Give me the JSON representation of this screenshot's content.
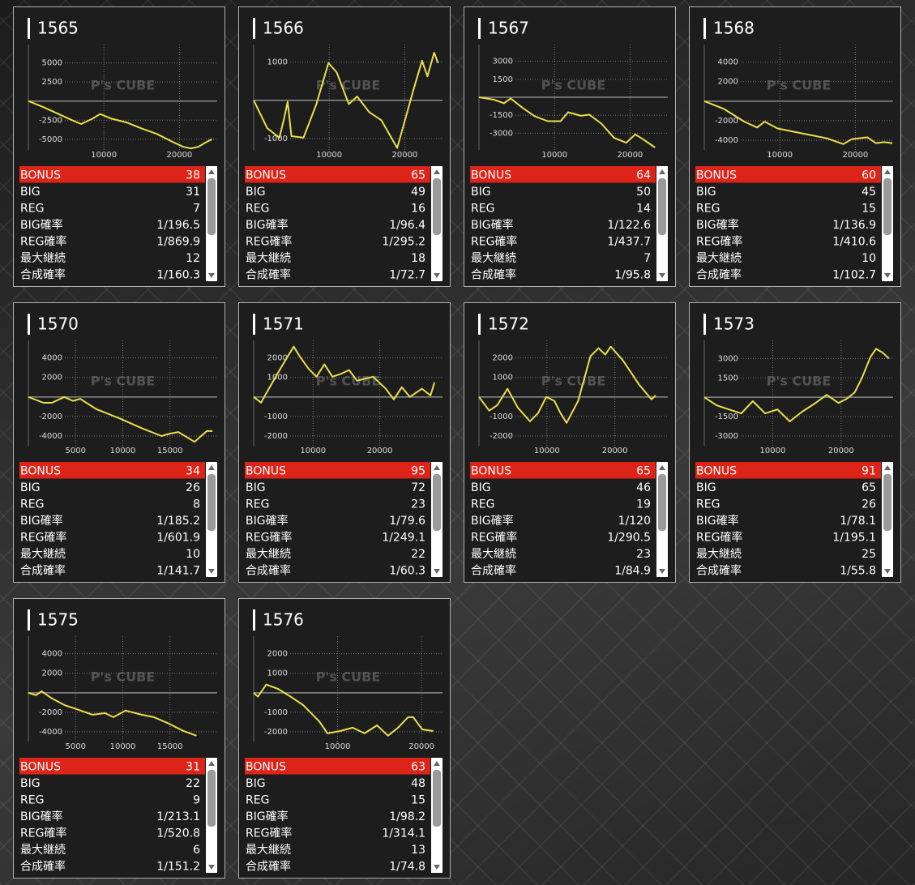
{
  "watermark": "P's CUBE",
  "row_labels": [
    "BONUS",
    "BIG",
    "REG",
    "BIG確率",
    "REG確率",
    "最大継続",
    "合成確率"
  ],
  "panels": [
    {
      "title": "1565",
      "chart": {
        "type": "line",
        "grid": true,
        "xlim": [
          0,
          25000
        ],
        "ylim": [
          -6400,
          7400
        ],
        "xticks": [
          10000,
          20000
        ],
        "yticks": [
          -5000,
          -2500,
          2500,
          5000
        ],
        "x": [
          0,
          2000,
          4000,
          6000,
          7000,
          8500,
          9500,
          11000,
          13000,
          15000,
          17000,
          19000,
          20500,
          21500,
          22500,
          23500,
          24300
        ],
        "series": [
          {
            "color": "#e9df4c",
            "values": [
              0,
              -800,
              -1700,
              -2600,
              -3000,
              -2300,
              -1700,
              -2300,
              -2800,
              -3600,
              -4300,
              -5300,
              -6000,
              -6200,
              -6000,
              -5400,
              -5000
            ]
          }
        ]
      },
      "stats": [
        38,
        31,
        7,
        "1/196.5",
        "1/869.9",
        12,
        "1/160.3"
      ]
    },
    {
      "title": "1566",
      "chart": {
        "type": "line",
        "grid": true,
        "xlim": [
          0,
          25000
        ],
        "ylim": [
          -1300,
          1460
        ],
        "xticks": [
          10000,
          20000
        ],
        "yticks": [
          -1000,
          1000
        ],
        "x": [
          0,
          1800,
          3400,
          4000,
          4500,
          5000,
          6600,
          8300,
          9900,
          11000,
          12600,
          13700,
          15300,
          16900,
          19000,
          21200,
          22300,
          23000,
          23900,
          24400
        ],
        "series": [
          {
            "color": "#e9df4c",
            "values": [
              0,
              -730,
              -980,
              -500,
              -40,
              -940,
              -980,
              -100,
              980,
              730,
              -100,
              100,
              -310,
              -520,
              -1250,
              310,
              1040,
              625,
              1250,
              980
            ]
          }
        ]
      },
      "stats": [
        65,
        49,
        16,
        "1/96.4",
        "1/295.2",
        18,
        "1/72.7"
      ]
    },
    {
      "title": "1567",
      "chart": {
        "type": "line",
        "grid": true,
        "xlim": [
          0,
          25000
        ],
        "ylim": [
          -4400,
          4400
        ],
        "xticks": [
          10000,
          20000
        ],
        "yticks": [
          -3000,
          -1500,
          1500,
          3000
        ],
        "x": [
          0,
          2000,
          3300,
          4200,
          5800,
          7400,
          9100,
          10800,
          11800,
          13500,
          14600,
          16200,
          17900,
          19500,
          20700,
          21700,
          23300
        ],
        "series": [
          {
            "color": "#e9df4c",
            "values": [
              0,
              -200,
              -500,
              -100,
              -900,
              -1600,
              -2000,
              -2000,
              -1250,
              -1550,
              -1450,
              -2200,
              -3400,
              -3800,
              -3100,
              -3500,
              -4200
            ]
          }
        ]
      },
      "stats": [
        64,
        50,
        14,
        "1/122.6",
        "1/437.7",
        7,
        "1/95.8"
      ]
    },
    {
      "title": "1568",
      "chart": {
        "type": "line",
        "grid": true,
        "xlim": [
          0,
          25000
        ],
        "ylim": [
          -5000,
          5800
        ],
        "xticks": [
          10000,
          20000
        ],
        "yticks": [
          -4000,
          -2000,
          2000,
          4000
        ],
        "x": [
          0,
          2600,
          5300,
          7000,
          8000,
          9700,
          12900,
          16200,
          18400,
          19500,
          21600,
          22700,
          23800,
          24900
        ],
        "series": [
          {
            "color": "#e9df4c",
            "values": [
              0,
              -800,
              -2100,
              -2700,
              -2100,
              -2800,
              -3300,
              -3800,
              -4400,
              -3900,
              -3700,
              -4300,
              -4200,
              -4300
            ]
          }
        ]
      },
      "stats": [
        60,
        45,
        15,
        "1/136.9",
        "1/410.6",
        10,
        "1/102.7"
      ]
    },
    {
      "title": "1570",
      "chart": {
        "type": "line",
        "grid": true,
        "xlim": [
          0,
          20000
        ],
        "ylim": [
          -5000,
          5800
        ],
        "xticks": [
          5000,
          10000,
          15000
        ],
        "yticks": [
          -4000,
          -2000,
          2000,
          4000
        ],
        "x": [
          0,
          1600,
          2500,
          3800,
          4700,
          5500,
          7200,
          9800,
          12000,
          14100,
          15000,
          15900,
          17600,
          18900,
          19500
        ],
        "series": [
          {
            "color": "#e9df4c",
            "values": [
              0,
              -600,
              -600,
              0,
              -400,
              -200,
              -1250,
              -2250,
              -3200,
              -4000,
              -3750,
              -3600,
              -4600,
              -3500,
              -3500
            ]
          }
        ]
      },
      "stats": [
        34,
        26,
        8,
        "1/185.2",
        "1/601.9",
        10,
        "1/141.7"
      ]
    },
    {
      "title": "1571",
      "chart": {
        "type": "line",
        "grid": true,
        "xlim": [
          1100,
          29400
        ],
        "ylim": [
          -2500,
          2900
        ],
        "xticks": [
          10000,
          20000
        ],
        "yticks": [
          -2000,
          -1000,
          1000,
          2000
        ],
        "x": [
          1100,
          2200,
          4400,
          6200,
          7100,
          8000,
          9300,
          10500,
          11700,
          12900,
          14100,
          15400,
          16600,
          19000,
          20900,
          22100,
          23300,
          24500,
          26300,
          27600,
          28200
        ],
        "series": [
          {
            "color": "#e9df4c",
            "values": [
              0,
              -290,
              1040,
              2080,
              2580,
              2080,
              1460,
              1040,
              1670,
              1040,
              1170,
              1380,
              830,
              1040,
              420,
              -125,
              500,
              0,
              420,
              80,
              750
            ]
          }
        ]
      },
      "stats": [
        95,
        72,
        23,
        "1/79.6",
        "1/249.1",
        22,
        "1/60.3"
      ]
    },
    {
      "title": "1572",
      "chart": {
        "type": "line",
        "grid": true,
        "xlim": [
          0,
          27800
        ],
        "ylim": [
          -2500,
          2900
        ],
        "xticks": [
          10000,
          20000
        ],
        "yticks": [
          -2000,
          -1000,
          1000,
          2000
        ],
        "x": [
          0,
          1500,
          2700,
          4200,
          5700,
          7500,
          8700,
          9900,
          11100,
          12000,
          12900,
          14600,
          16400,
          17600,
          18600,
          19400,
          21200,
          23600,
          25400,
          26000
        ],
        "series": [
          {
            "color": "#e9df4c",
            "values": [
              0,
              -700,
              -420,
              420,
              -540,
              -1250,
              -830,
              0,
              -200,
              -830,
              -1330,
              -200,
              2080,
              2500,
              2170,
              2580,
              1870,
              620,
              -125,
              80
            ]
          }
        ]
      },
      "stats": [
        65,
        46,
        19,
        "1/120",
        "1/290.5",
        23,
        "1/84.9"
      ]
    },
    {
      "title": "1573",
      "chart": {
        "type": "line",
        "grid": true,
        "xlim": [
          0,
          27600
        ],
        "ylim": [
          -3750,
          4400
        ],
        "xticks": [
          10000,
          20000
        ],
        "yticks": [
          -3000,
          -1500,
          1500,
          3000
        ],
        "x": [
          0,
          1800,
          3600,
          5400,
          7100,
          8900,
          10700,
          12500,
          14300,
          16100,
          17900,
          19600,
          20800,
          22000,
          23100,
          24300,
          25100,
          26100,
          27000
        ],
        "series": [
          {
            "color": "#e9df4c",
            "values": [
              0,
              -620,
              -940,
              -1250,
              -300,
              -1250,
              -940,
              -1870,
              -1120,
              -500,
              190,
              -440,
              -120,
              380,
              1560,
              3120,
              3750,
              3440,
              3000
            ]
          }
        ]
      },
      "stats": [
        91,
        65,
        26,
        "1/78.1",
        "1/195.1",
        25,
        "1/55.8"
      ]
    },
    {
      "title": "1575",
      "chart": {
        "type": "line",
        "grid": true,
        "xlim": [
          0,
          20000
        ],
        "ylim": [
          -5000,
          5800
        ],
        "xticks": [
          5000,
          10000,
          15000
        ],
        "yticks": [
          -4000,
          -2000,
          2000,
          4000
        ],
        "x": [
          0,
          800,
          1400,
          2500,
          3800,
          5100,
          6800,
          8100,
          9000,
          10300,
          12000,
          13300,
          14700,
          16400,
          17800
        ],
        "series": [
          {
            "color": "#e9df4c",
            "values": [
              0,
              -250,
              160,
              -580,
              -1250,
              -1670,
              -2250,
              -2080,
              -2500,
              -1830,
              -2250,
              -2500,
              -3080,
              -3900,
              -4400
            ]
          }
        ]
      },
      "stats": [
        31,
        22,
        9,
        "1/213.1",
        "1/520.8",
        6,
        "1/151.2"
      ]
    },
    {
      "title": "1576",
      "chart": {
        "type": "line",
        "grid": true,
        "xlim": [
          0,
          22500
        ],
        "ylim": [
          -2500,
          2900
        ],
        "xticks": [
          10000,
          20000
        ],
        "yticks": [
          -2000,
          -1000,
          1000,
          2000
        ],
        "x": [
          0,
          500,
          1500,
          2900,
          4400,
          5900,
          7800,
          8800,
          10300,
          11800,
          13200,
          14700,
          16000,
          17200,
          18400,
          19000,
          20100,
          21400
        ],
        "series": [
          {
            "color": "#e9df4c",
            "values": [
              0,
              -200,
              420,
              200,
              -200,
              -630,
              -1460,
              -2080,
              -1960,
              -1790,
              -2080,
              -1670,
              -2200,
              -1790,
              -1250,
              -1250,
              -1880,
              -1960
            ]
          }
        ]
      },
      "stats": [
        63,
        48,
        15,
        "1/98.2",
        "1/314.1",
        13,
        "1/74.8"
      ]
    }
  ]
}
